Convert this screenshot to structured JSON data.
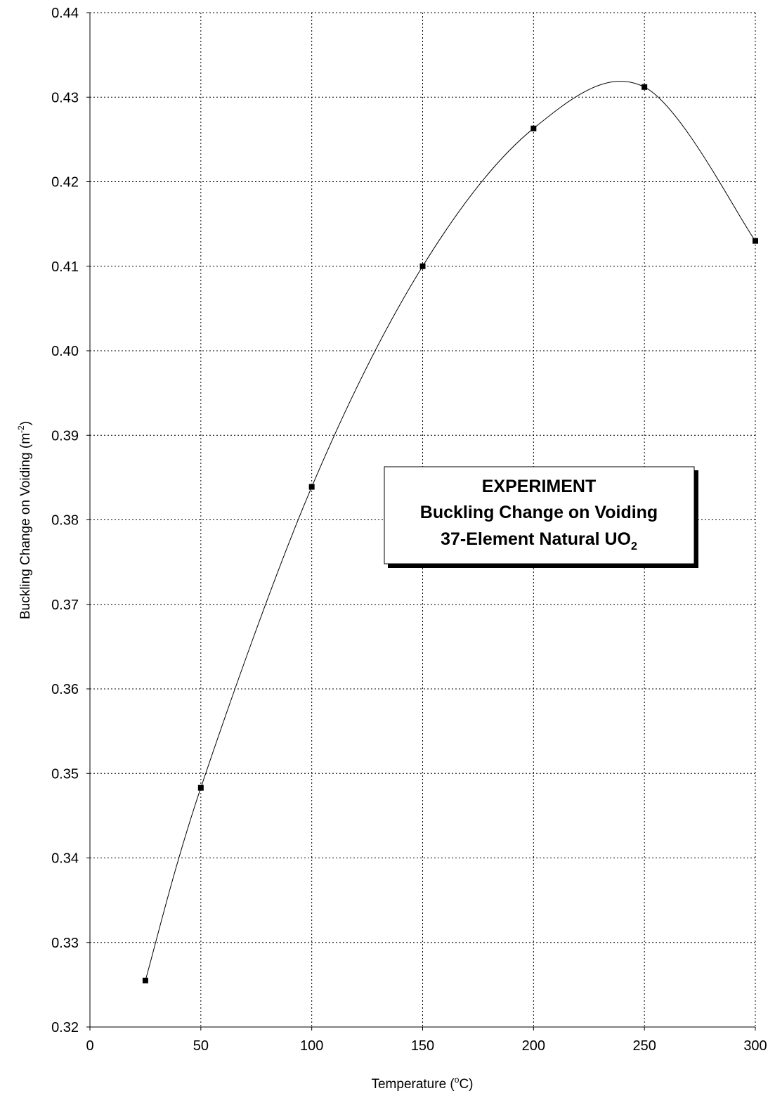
{
  "chart_data": {
    "type": "line",
    "xlabel": "Temperature (",
    "xlabel_sup": "o",
    "xlabel_end": "C)",
    "ylabel": "Buckling Change on Voiding (m",
    "ylabel_sup": "-2",
    "ylabel_end": ")",
    "xlim": [
      0,
      300
    ],
    "ylim": [
      0.32,
      0.44
    ],
    "x_ticks": [
      "0",
      "50",
      "100",
      "150",
      "200",
      "250",
      "300"
    ],
    "y_ticks": [
      "0.32",
      "0.33",
      "0.34",
      "0.35",
      "0.36",
      "0.37",
      "0.38",
      "0.39",
      "0.40",
      "0.41",
      "0.42",
      "0.43",
      "0.44"
    ],
    "x_tick_values": [
      0,
      50,
      100,
      150,
      200,
      250,
      300
    ],
    "y_tick_values": [
      0.32,
      0.33,
      0.34,
      0.35,
      0.36,
      0.37,
      0.38,
      0.39,
      0.4,
      0.41,
      0.42,
      0.43,
      0.44
    ],
    "grid": true,
    "series": [
      {
        "x": [
          25,
          50,
          100,
          150,
          200,
          250,
          300
        ],
        "y": [
          0.3255,
          0.3483,
          0.3839,
          0.41,
          0.4263,
          0.4312,
          0.413
        ],
        "color": "#000000",
        "marker": "square",
        "smooth": true
      }
    ],
    "annotation": {
      "line1": "EXPERIMENT",
      "line2": "Buckling Change on Voiding",
      "line3": "37-Element Natural UO",
      "line3_sub": "2"
    }
  }
}
